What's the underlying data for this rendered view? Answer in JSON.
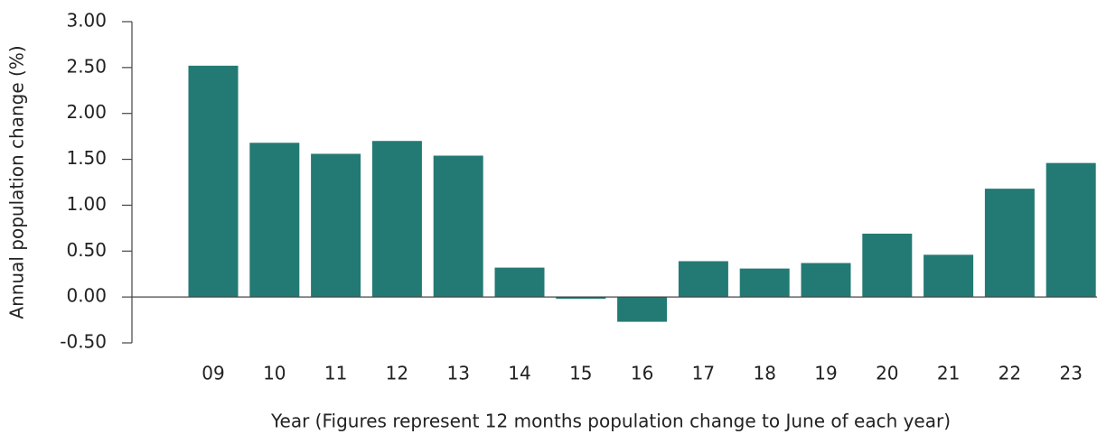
{
  "chart_data": {
    "type": "bar",
    "categories": [
      "09",
      "10",
      "11",
      "12",
      "13",
      "14",
      "15",
      "16",
      "17",
      "18",
      "19",
      "20",
      "21",
      "22",
      "23"
    ],
    "values": [
      2.52,
      1.68,
      1.56,
      1.7,
      1.54,
      0.32,
      -0.02,
      -0.27,
      0.39,
      0.31,
      0.37,
      0.69,
      0.46,
      1.18,
      1.46
    ],
    "color": "#237a74",
    "xlabel": "Year (Figures represent 12 months population change to June of each year)",
    "ylabel": "Annual population change (%)",
    "ylim": [
      -0.5,
      3.0
    ],
    "yticks": [
      {
        "value": -0.5,
        "label": "-0.50"
      },
      {
        "value": 0,
        "label": "0.00"
      },
      {
        "value": 0.5,
        "label": "0.50"
      },
      {
        "value": 1.0,
        "label": "1.00"
      },
      {
        "value": 1.5,
        "label": "1.50"
      },
      {
        "value": 2.0,
        "label": "2.00"
      },
      {
        "value": 2.5,
        "label": "2.50"
      },
      {
        "value": 3.0,
        "label": "3.00"
      }
    ],
    "grid": false
  }
}
